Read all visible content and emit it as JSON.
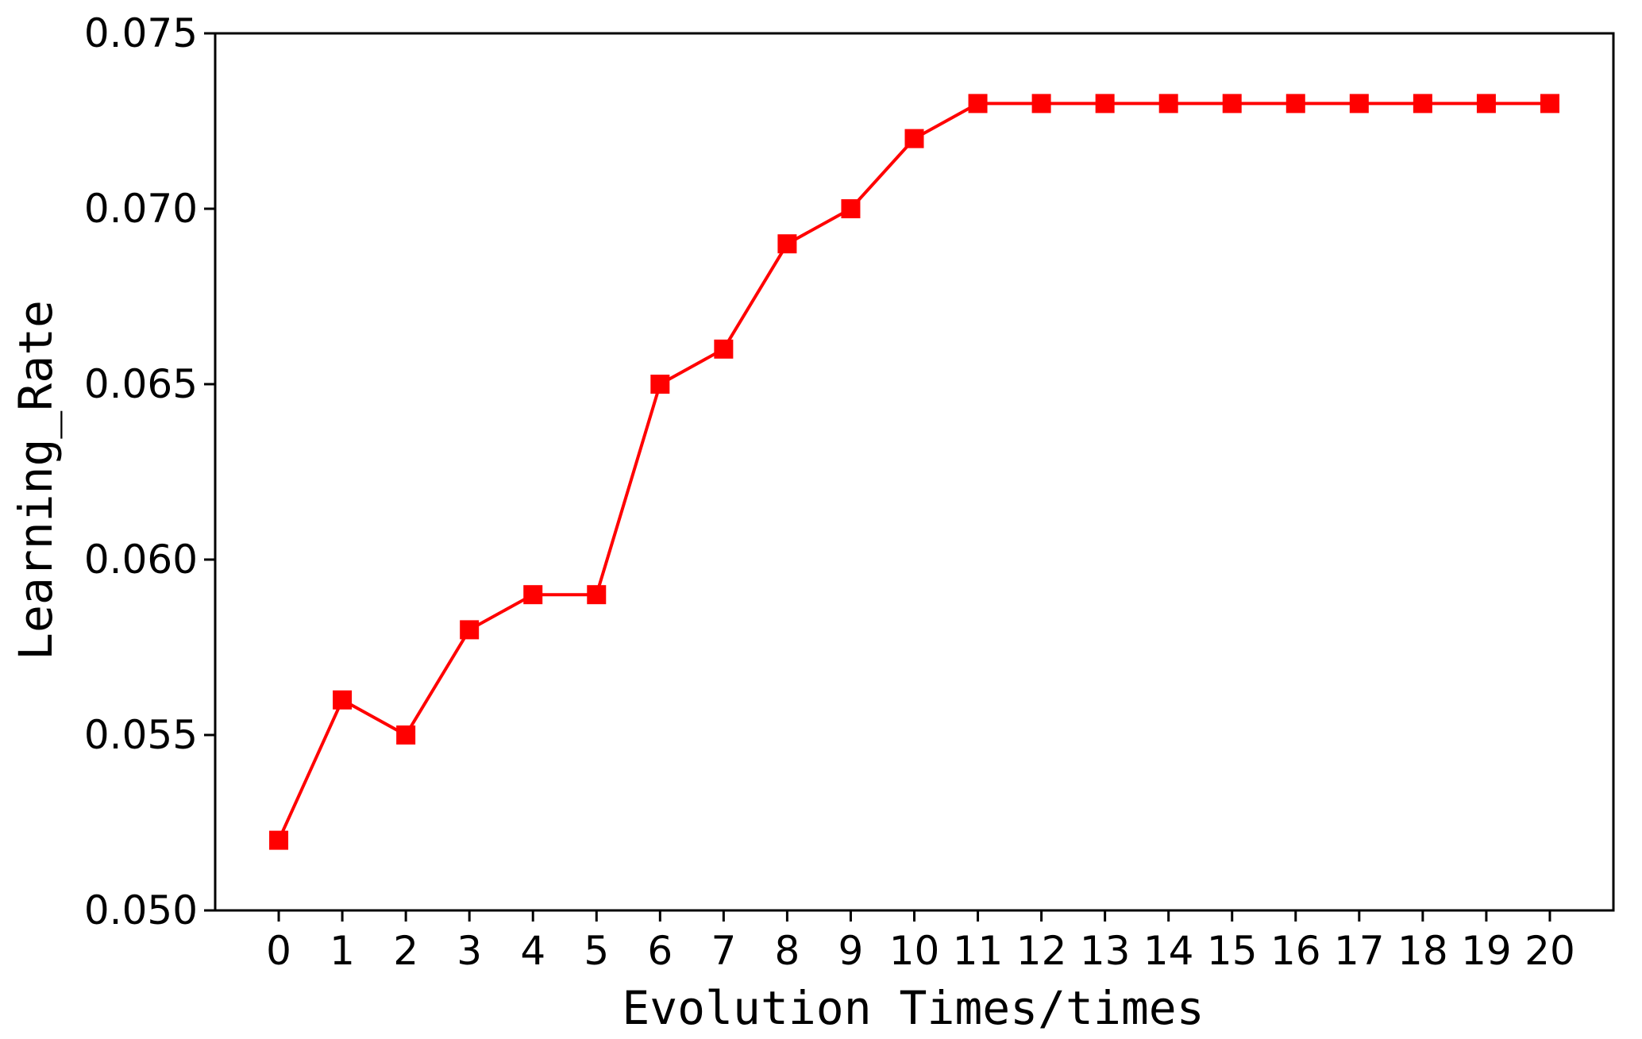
{
  "chart_data": {
    "type": "line",
    "title": "",
    "xlabel": "Evolution Times/times",
    "ylabel": "Learning_Rate",
    "x": [
      0,
      1,
      2,
      3,
      4,
      5,
      6,
      7,
      8,
      9,
      10,
      11,
      12,
      13,
      14,
      15,
      16,
      17,
      18,
      19,
      20
    ],
    "x_tick_labels": [
      "0",
      "1",
      "2",
      "3",
      "4",
      "5",
      "6",
      "7",
      "8",
      "9",
      "10",
      "11",
      "12",
      "13",
      "14",
      "15",
      "16",
      "17",
      "18",
      "19",
      "20"
    ],
    "y_ticks": [
      0.05,
      0.055,
      0.06,
      0.065,
      0.07,
      0.075
    ],
    "y_tick_labels": [
      "0.050",
      "0.055",
      "0.060",
      "0.065",
      "0.070",
      "0.075"
    ],
    "xlim": [
      -1,
      21
    ],
    "ylim": [
      0.05,
      0.075
    ],
    "grid": false,
    "series": [
      {
        "color": "#ff0000",
        "marker": "square",
        "values": [
          0.052,
          0.056,
          0.055,
          0.058,
          0.059,
          0.059,
          0.065,
          0.066,
          0.069,
          0.07,
          0.072,
          0.073,
          0.073,
          0.073,
          0.073,
          0.073,
          0.073,
          0.073,
          0.073,
          0.073,
          0.073
        ]
      }
    ]
  }
}
